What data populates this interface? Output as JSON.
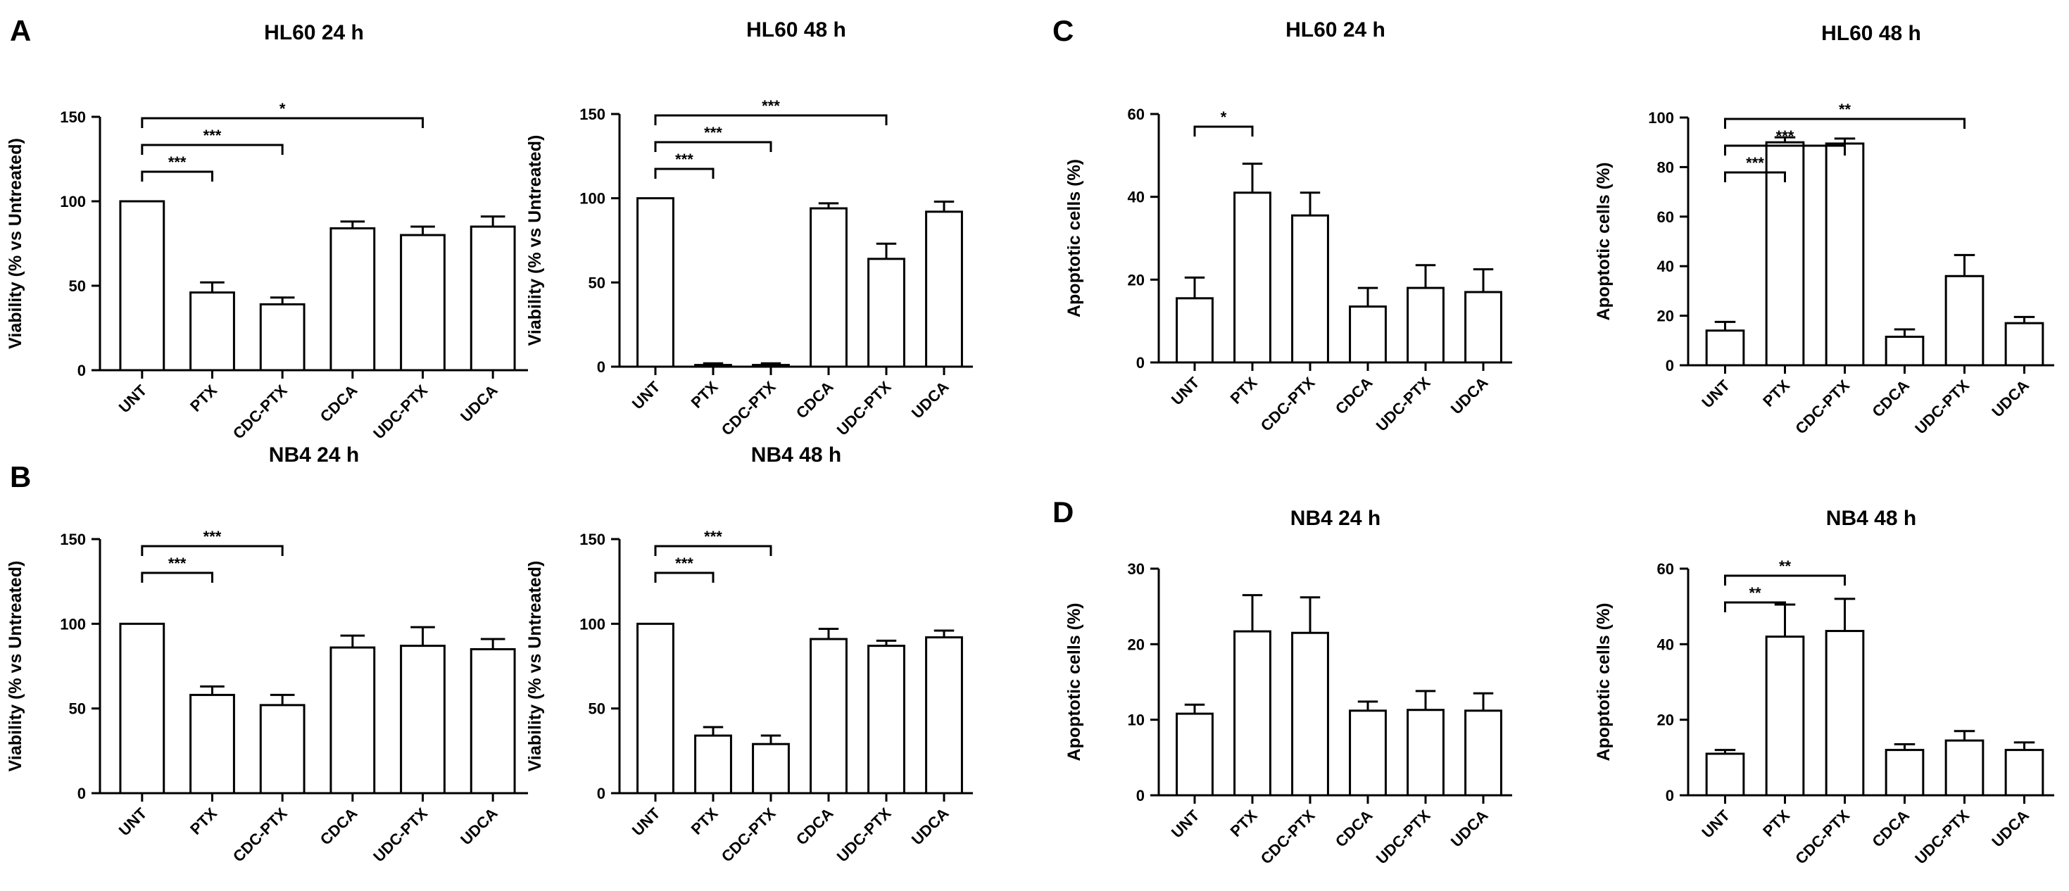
{
  "panel_labels": [
    "A",
    "B",
    "C",
    "D"
  ],
  "chart_data": [
    {
      "type": "bar",
      "panel": "A",
      "title": "HL60 24 h",
      "ylabel": "Viability (% vs Untreated)",
      "categories": [
        "UNT",
        "PTX",
        "CDC-PTX",
        "CDCA",
        "UDC-PTX",
        "UDCA"
      ],
      "values": [
        100,
        46,
        39,
        84,
        80,
        85
      ],
      "errors": [
        0,
        6,
        4,
        4,
        5,
        6
      ],
      "ylim": [
        0,
        150
      ],
      "yticks": [
        0,
        50,
        100,
        150
      ],
      "significance": [
        {
          "from": "UNT",
          "to": "PTX",
          "label": "***"
        },
        {
          "from": "UNT",
          "to": "CDC-PTX",
          "label": "***"
        },
        {
          "from": "UNT",
          "to": "UDC-PTX",
          "label": "*"
        }
      ]
    },
    {
      "type": "bar",
      "panel": "",
      "title": "HL60 48 h",
      "ylabel": "Viability (% vs Untreated)",
      "categories": [
        "UNT",
        "PTX",
        "CDC-PTX",
        "CDCA",
        "UDC-PTX",
        "UDCA"
      ],
      "values": [
        100,
        1,
        1,
        94,
        64,
        92
      ],
      "errors": [
        0,
        1,
        1,
        3,
        9,
        6
      ],
      "ylim": [
        0,
        150
      ],
      "yticks": [
        0,
        50,
        100,
        150
      ],
      "significance": [
        {
          "from": "UNT",
          "to": "PTX",
          "label": "***"
        },
        {
          "from": "UNT",
          "to": "CDC-PTX",
          "label": "***"
        },
        {
          "from": "UNT",
          "to": "UDC-PTX",
          "label": "***"
        }
      ]
    },
    {
      "type": "bar",
      "panel": "C",
      "title": "HL60 24 h",
      "ylabel": "Apoptotic cells (%)",
      "categories": [
        "UNT",
        "PTX",
        "CDC-PTX",
        "CDCA",
        "UDC-PTX",
        "UDCA"
      ],
      "values": [
        15.5,
        41,
        35.5,
        13.5,
        18,
        17
      ],
      "errors": [
        5,
        7,
        5.5,
        4.5,
        5.5,
        5.5
      ],
      "ylim": [
        0,
        60
      ],
      "yticks": [
        0,
        20,
        40,
        60
      ],
      "significance": [
        {
          "from": "UNT",
          "to": "PTX",
          "label": "*"
        }
      ]
    },
    {
      "type": "bar",
      "panel": "",
      "title": "HL60 48 h",
      "ylabel": "Apoptotic cells (%)",
      "categories": [
        "UNT",
        "PTX",
        "CDC-PTX",
        "CDCA",
        "UDC-PTX",
        "UDCA"
      ],
      "values": [
        14,
        90,
        89.5,
        11.5,
        36,
        17
      ],
      "errors": [
        3.5,
        2,
        2,
        3,
        8.5,
        2.5
      ],
      "ylim": [
        0,
        100
      ],
      "yticks": [
        0,
        20,
        40,
        60,
        80,
        100
      ],
      "significance": [
        {
          "from": "UNT",
          "to": "PTX",
          "label": "***"
        },
        {
          "from": "UNT",
          "to": "CDC-PTX",
          "label": "***"
        },
        {
          "from": "UNT",
          "to": "UDC-PTX",
          "label": "**"
        }
      ]
    },
    {
      "type": "bar",
      "panel": "B",
      "title": "NB4 24 h",
      "ylabel": "Viability (% vs Untreated)",
      "categories": [
        "UNT",
        "PTX",
        "CDC-PTX",
        "CDCA",
        "UDC-PTX",
        "UDCA"
      ],
      "values": [
        100,
        58,
        52,
        86,
        87,
        85
      ],
      "errors": [
        0,
        5,
        6,
        7,
        11,
        6
      ],
      "ylim": [
        0,
        150
      ],
      "yticks": [
        0,
        50,
        100,
        150
      ],
      "significance": [
        {
          "from": "UNT",
          "to": "PTX",
          "label": "***"
        },
        {
          "from": "UNT",
          "to": "CDC-PTX",
          "label": "***"
        }
      ]
    },
    {
      "type": "bar",
      "panel": "",
      "title": "NB4 48 h",
      "ylabel": "Viability (% vs Untreated)",
      "categories": [
        "UNT",
        "PTX",
        "CDC-PTX",
        "CDCA",
        "UDC-PTX",
        "UDCA"
      ],
      "values": [
        100,
        34,
        29,
        91,
        87,
        92
      ],
      "errors": [
        0,
        5,
        5,
        6,
        3,
        4
      ],
      "ylim": [
        0,
        150
      ],
      "yticks": [
        0,
        50,
        100,
        150
      ],
      "significance": [
        {
          "from": "UNT",
          "to": "PTX",
          "label": "***"
        },
        {
          "from": "UNT",
          "to": "CDC-PTX",
          "label": "***"
        }
      ]
    },
    {
      "type": "bar",
      "panel": "D",
      "title": "NB4 24 h",
      "ylabel": "Apoptotic cells (%)",
      "categories": [
        "UNT",
        "PTX",
        "CDC-PTX",
        "CDCA",
        "UDC-PTX",
        "UDCA"
      ],
      "values": [
        10.8,
        21.7,
        21.5,
        11.2,
        11.3,
        11.2
      ],
      "errors": [
        1.2,
        4.8,
        4.7,
        1.2,
        2.5,
        2.3
      ],
      "ylim": [
        0,
        30
      ],
      "yticks": [
        0,
        10,
        20,
        30
      ],
      "significance": []
    },
    {
      "type": "bar",
      "panel": "",
      "title": "NB4 48 h",
      "ylabel": "Apoptotic cells (%)",
      "categories": [
        "UNT",
        "PTX",
        "CDC-PTX",
        "CDCA",
        "UDC-PTX",
        "UDCA"
      ],
      "values": [
        11,
        42,
        43.5,
        12,
        14.5,
        12
      ],
      "errors": [
        1,
        8.5,
        8.5,
        1.5,
        2.5,
        2
      ],
      "ylim": [
        0,
        60
      ],
      "yticks": [
        0,
        20,
        40,
        60
      ],
      "significance": [
        {
          "from": "UNT",
          "to": "PTX",
          "label": "**"
        },
        {
          "from": "UNT",
          "to": "CDC-PTX",
          "label": "**"
        }
      ]
    }
  ]
}
